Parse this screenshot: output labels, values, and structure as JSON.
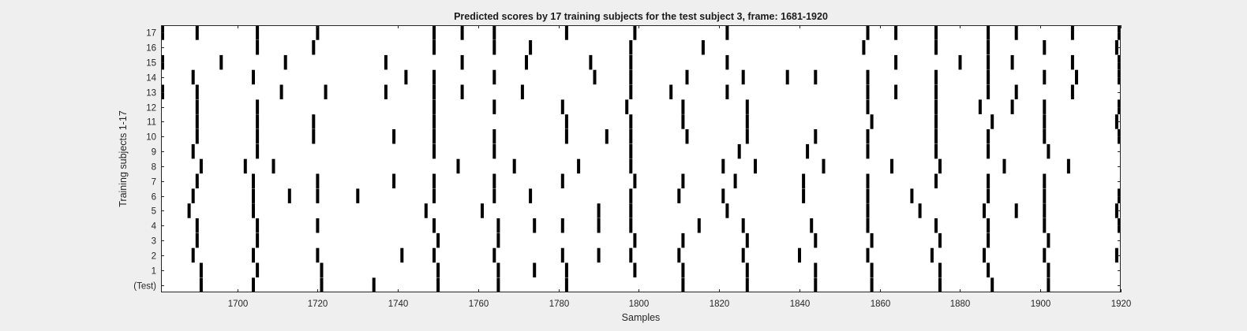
{
  "chart_data": {
    "type": "scatter",
    "title": "Predicted scores by 17 training subjects for the test subject 3, frame: 1681-1920",
    "xlabel": "Samples",
    "ylabel": "Training subjects 1-17",
    "xlim": [
      1681,
      1920
    ],
    "xticks": [
      1700,
      1720,
      1740,
      1760,
      1780,
      1800,
      1820,
      1840,
      1860,
      1880,
      1900,
      1920
    ],
    "ylim": [
      -0.5,
      17.5
    ],
    "grid": false,
    "legend": "none",
    "colors": {
      "background": "#efefef",
      "plot": "#ffffff",
      "marker": "#000000"
    },
    "series": [
      {
        "label": "(Test)",
        "y": 0,
        "x": [
          1691,
          1704,
          1721,
          1734,
          1750,
          1765,
          1782,
          1811,
          1827,
          1844,
          1858,
          1875,
          1888,
          1902
        ]
      },
      {
        "label": "1",
        "y": 1,
        "x": [
          1691,
          1705,
          1721,
          1750,
          1765,
          1774,
          1782,
          1799,
          1811,
          1827,
          1844,
          1858,
          1875,
          1887,
          1902
        ]
      },
      {
        "label": "2",
        "y": 2,
        "x": [
          1689,
          1704,
          1720,
          1741,
          1749,
          1764,
          1781,
          1790,
          1798,
          1810,
          1826,
          1840,
          1857,
          1873,
          1886,
          1901,
          1919
        ]
      },
      {
        "label": "3",
        "y": 3,
        "x": [
          1690,
          1705,
          1750,
          1765,
          1799,
          1811,
          1827,
          1844,
          1858,
          1875,
          1887,
          1902
        ]
      },
      {
        "label": "4",
        "y": 4,
        "x": [
          1690,
          1705,
          1720,
          1749,
          1765,
          1774,
          1781,
          1790,
          1798,
          1815,
          1826,
          1843,
          1857,
          1874,
          1887,
          1901,
          1920
        ]
      },
      {
        "label": "5",
        "y": 5,
        "x": [
          1688,
          1704,
          1747,
          1761,
          1790,
          1798,
          1822,
          1857,
          1870,
          1886,
          1894,
          1901,
          1919
        ]
      },
      {
        "label": "6",
        "y": 6,
        "x": [
          1689,
          1704,
          1713,
          1720,
          1730,
          1749,
          1764,
          1773,
          1798,
          1810,
          1821,
          1841,
          1857,
          1868,
          1887,
          1901,
          1920
        ]
      },
      {
        "label": "7",
        "y": 7,
        "x": [
          1690,
          1704,
          1720,
          1739,
          1749,
          1764,
          1781,
          1799,
          1811,
          1824,
          1841,
          1857,
          1874,
          1887,
          1901
        ]
      },
      {
        "label": "8",
        "y": 8,
        "x": [
          1691,
          1702,
          1709,
          1755,
          1769,
          1785,
          1798,
          1821,
          1829,
          1846,
          1863,
          1875,
          1891,
          1907
        ]
      },
      {
        "label": "9",
        "y": 9,
        "x": [
          1689,
          1705,
          1749,
          1764,
          1798,
          1825,
          1842,
          1857,
          1874,
          1887,
          1902
        ]
      },
      {
        "label": "10",
        "y": 10,
        "x": [
          1690,
          1705,
          1719,
          1739,
          1749,
          1764,
          1782,
          1792,
          1798,
          1812,
          1827,
          1844,
          1857,
          1874,
          1887,
          1901,
          1920
        ]
      },
      {
        "label": "11",
        "y": 11,
        "x": [
          1690,
          1705,
          1719,
          1749,
          1782,
          1798,
          1811,
          1827,
          1858,
          1874,
          1888,
          1901,
          1919
        ]
      },
      {
        "label": "12",
        "y": 12,
        "x": [
          1690,
          1705,
          1749,
          1764,
          1781,
          1797,
          1811,
          1827,
          1857,
          1874,
          1885,
          1893,
          1901,
          1920
        ]
      },
      {
        "label": "13",
        "y": 13,
        "x": [
          1681,
          1690,
          1711,
          1722,
          1737,
          1749,
          1756,
          1771,
          1798,
          1808,
          1822,
          1857,
          1864,
          1874,
          1887,
          1894,
          1908
        ]
      },
      {
        "label": "14",
        "y": 14,
        "x": [
          1689,
          1704,
          1742,
          1749,
          1764,
          1789,
          1798,
          1812,
          1826,
          1837,
          1844,
          1857,
          1874,
          1887,
          1901,
          1909,
          1920
        ]
      },
      {
        "label": "15",
        "y": 15,
        "x": [
          1681,
          1696,
          1712,
          1737,
          1756,
          1772,
          1788,
          1798,
          1822,
          1864,
          1880,
          1887,
          1893,
          1908,
          1920
        ]
      },
      {
        "label": "16",
        "y": 16,
        "x": [
          1705,
          1719,
          1749,
          1764,
          1773,
          1798,
          1816,
          1856,
          1874,
          1887,
          1901,
          1919
        ]
      },
      {
        "label": "17",
        "y": 17,
        "x": [
          1681,
          1690,
          1705,
          1720,
          1749,
          1756,
          1764,
          1782,
          1799,
          1822,
          1857,
          1864,
          1874,
          1887,
          1894,
          1908,
          1920
        ]
      }
    ]
  }
}
